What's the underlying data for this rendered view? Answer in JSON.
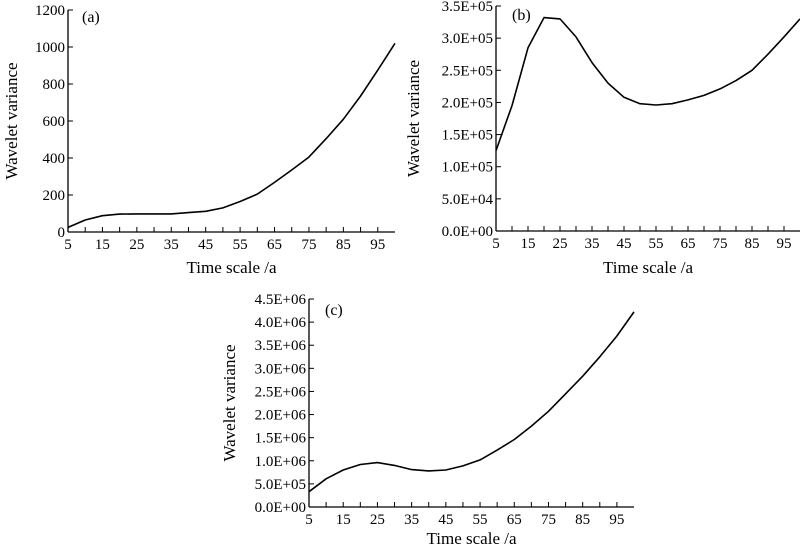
{
  "chart_data": [
    {
      "id": "a",
      "type": "line",
      "panel_label": "(a)",
      "title": "",
      "xlabel": "Time scale /a",
      "ylabel": "Wavelet variance",
      "xlim": [
        5,
        100
      ],
      "ylim": [
        0,
        1200
      ],
      "grid": false,
      "x_ticks": [
        5,
        10,
        15,
        20,
        25,
        30,
        35,
        40,
        45,
        50,
        55,
        60,
        65,
        70,
        75,
        80,
        85,
        90,
        95
      ],
      "x_tick_labels": [
        "5",
        "15",
        "25",
        "35",
        "45",
        "55",
        "65",
        "75",
        "85",
        "95"
      ],
      "y_ticks": [
        0,
        200,
        400,
        600,
        800,
        1000,
        1200
      ],
      "y_tick_labels": [
        "0",
        "200",
        "400",
        "600",
        "800",
        "1000",
        "1200"
      ],
      "series": [
        {
          "x": [
            5,
            10,
            15,
            20,
            25,
            30,
            35,
            40,
            45,
            50,
            55,
            60,
            65,
            70,
            75,
            80,
            85,
            90,
            95,
            100
          ],
          "values": [
            25,
            65,
            88,
            97,
            98,
            98,
            98,
            105,
            112,
            130,
            165,
            205,
            268,
            335,
            405,
            505,
            610,
            735,
            875,
            1020
          ]
        }
      ]
    },
    {
      "id": "b",
      "type": "line",
      "panel_label": "(b)",
      "title": "",
      "xlabel": "Time scale /a",
      "ylabel": "Wavelet variance",
      "xlim": [
        5,
        100
      ],
      "ylim": [
        0,
        350000
      ],
      "grid": false,
      "x_ticks": [
        5,
        10,
        15,
        20,
        25,
        30,
        35,
        40,
        45,
        50,
        55,
        60,
        65,
        70,
        75,
        80,
        85,
        90,
        95
      ],
      "x_tick_labels": [
        "5",
        "15",
        "25",
        "35",
        "45",
        "55",
        "65",
        "75",
        "85",
        "95"
      ],
      "y_ticks": [
        0,
        50000,
        100000,
        150000,
        200000,
        250000,
        300000,
        350000
      ],
      "y_tick_labels": [
        "0.0E+00",
        "5.0E+04",
        "1.0E+05",
        "1.5E+05",
        "2.0E+05",
        "2.5E+05",
        "3.0E+05",
        "3.5E+05"
      ],
      "series": [
        {
          "x": [
            5,
            10,
            15,
            20,
            25,
            30,
            35,
            40,
            45,
            50,
            55,
            60,
            65,
            70,
            75,
            80,
            85,
            90,
            95,
            100
          ],
          "values": [
            125000,
            195000,
            285000,
            332000,
            330000,
            302000,
            262000,
            230000,
            208000,
            198000,
            196000,
            198000,
            204000,
            211000,
            221000,
            234000,
            250000,
            275000,
            302000,
            330000
          ]
        }
      ]
    },
    {
      "id": "c",
      "type": "line",
      "panel_label": "(c)",
      "title": "",
      "xlabel": "Time scale /a",
      "ylabel": "Wavelet variance",
      "xlim": [
        5,
        100
      ],
      "ylim": [
        0,
        4500000
      ],
      "grid": false,
      "x_ticks": [
        5,
        10,
        15,
        20,
        25,
        30,
        35,
        40,
        45,
        50,
        55,
        60,
        65,
        70,
        75,
        80,
        85,
        90,
        95
      ],
      "x_tick_labels": [
        "5",
        "15",
        "25",
        "35",
        "45",
        "55",
        "65",
        "75",
        "85",
        "95"
      ],
      "y_ticks": [
        0,
        500000,
        1000000,
        1500000,
        2000000,
        2500000,
        3000000,
        3500000,
        4000000,
        4500000
      ],
      "y_tick_labels": [
        "0.0E+00",
        "5.0E+05",
        "1.0E+06",
        "1.5E+06",
        "2.0E+06",
        "2.5E+06",
        "3.0E+06",
        "3.5E+06",
        "4.0E+06",
        "4.5E+06"
      ],
      "series": [
        {
          "x": [
            5,
            10,
            15,
            20,
            25,
            30,
            35,
            40,
            45,
            50,
            55,
            60,
            65,
            70,
            75,
            80,
            85,
            90,
            95,
            100
          ],
          "values": [
            330000,
            610000,
            800000,
            920000,
            960000,
            900000,
            810000,
            780000,
            800000,
            890000,
            1020000,
            1230000,
            1460000,
            1750000,
            2070000,
            2450000,
            2830000,
            3250000,
            3700000,
            4220000
          ]
        }
      ]
    }
  ]
}
